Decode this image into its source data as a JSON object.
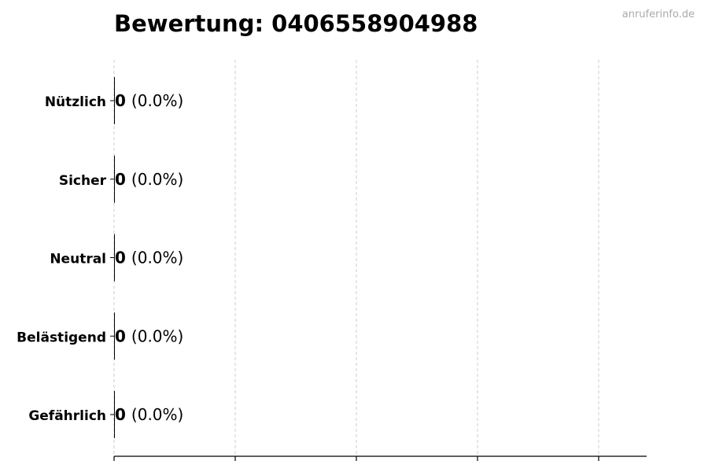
{
  "chart_data": {
    "type": "bar",
    "orientation": "horizontal",
    "title": "Bewertung: 0406558904988",
    "watermark": "anruferinfo.de",
    "categories": [
      "Nützlich",
      "Sicher",
      "Neutral",
      "Belästigend",
      "Gefährlich"
    ],
    "values": [
      0,
      0,
      0,
      0,
      0
    ],
    "percent_labels": [
      "(0.0%)",
      "(0.0%)",
      "(0.0%)",
      "(0.0%)",
      "(0.0%)"
    ],
    "value_labels": [
      "0",
      "0",
      "0",
      "0",
      "0"
    ],
    "xlabel": "",
    "ylabel": "",
    "x_gridlines": 5,
    "grid": "vertical dashed",
    "colors": {
      "bar": "#000000",
      "grid": "#cccccc",
      "watermark": "#aaaaaa"
    }
  }
}
